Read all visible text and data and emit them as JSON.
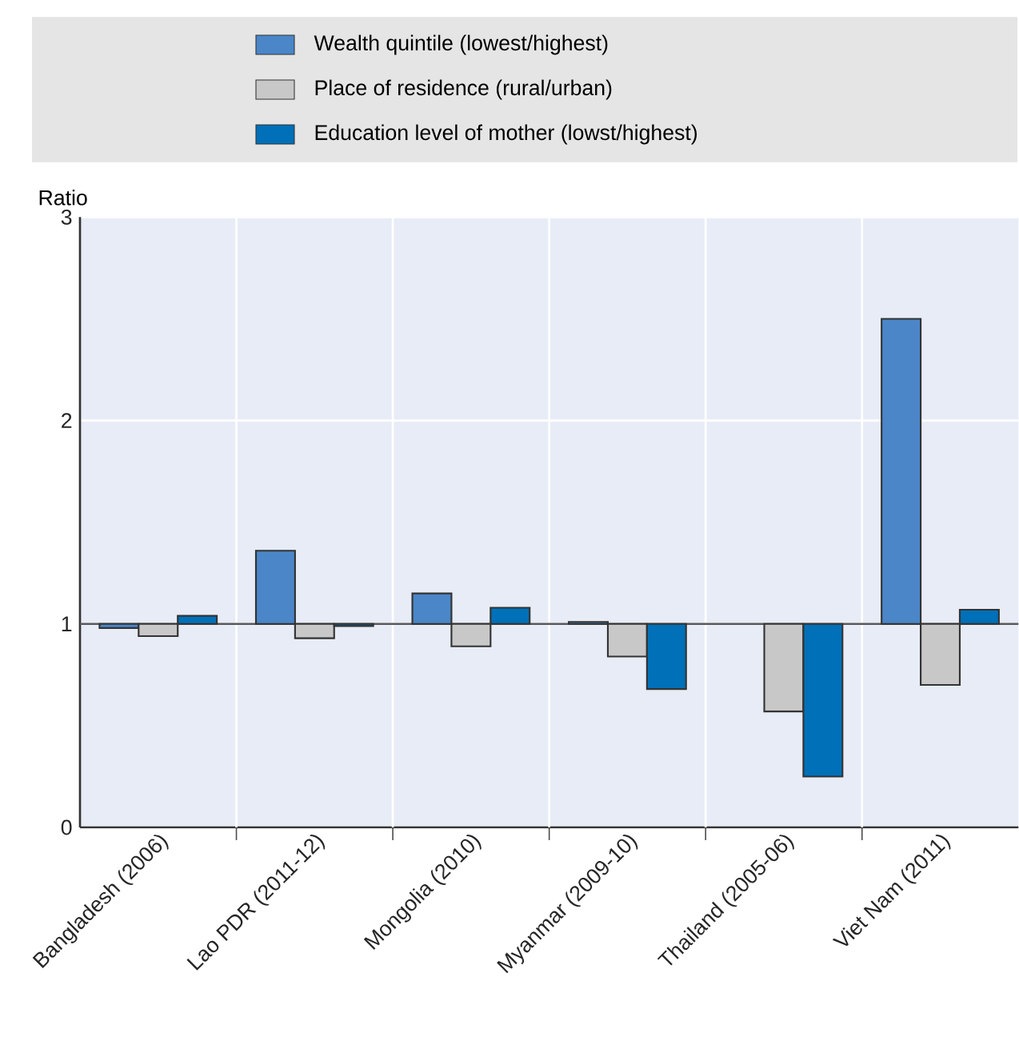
{
  "chart_data": {
    "type": "bar",
    "ylabel": "Ratio",
    "categories": [
      "Bangladesh (2006)",
      "Lao PDR (2011-12)",
      "Mongolia (2010)",
      "Myanmar (2009-10)",
      "Thailand (2005-06)",
      "Viet Nam (2011)"
    ],
    "series": [
      {
        "name": "Wealth quintile (lowest/highest)",
        "color": "#4a86c8",
        "base": [
          1,
          1,
          1,
          1,
          null,
          1
        ],
        "values": [
          -0.02,
          0.36,
          0.15,
          0.01,
          null,
          1.5
        ]
      },
      {
        "name": "Place of residence (rural/urban)",
        "color": "#c8c8c8",
        "base": [
          1,
          1,
          1,
          1,
          1,
          1
        ],
        "values": [
          -0.06,
          -0.07,
          -0.11,
          -0.16,
          -0.43,
          -0.3
        ]
      },
      {
        "name": "Education level of mother (lowst/highest)",
        "color": "#0070b8",
        "base": [
          1,
          1,
          1,
          1,
          1,
          1
        ],
        "values": [
          0.04,
          -0.01,
          0.08,
          -0.32,
          -0.75,
          0.07
        ]
      }
    ],
    "ref_lines": [
      {
        "axis": "y",
        "value": 1,
        "color": "#595959"
      }
    ],
    "ylim": [
      0,
      3
    ],
    "yticks": [
      0,
      1,
      2,
      3
    ],
    "grid": true,
    "legend": "top"
  }
}
